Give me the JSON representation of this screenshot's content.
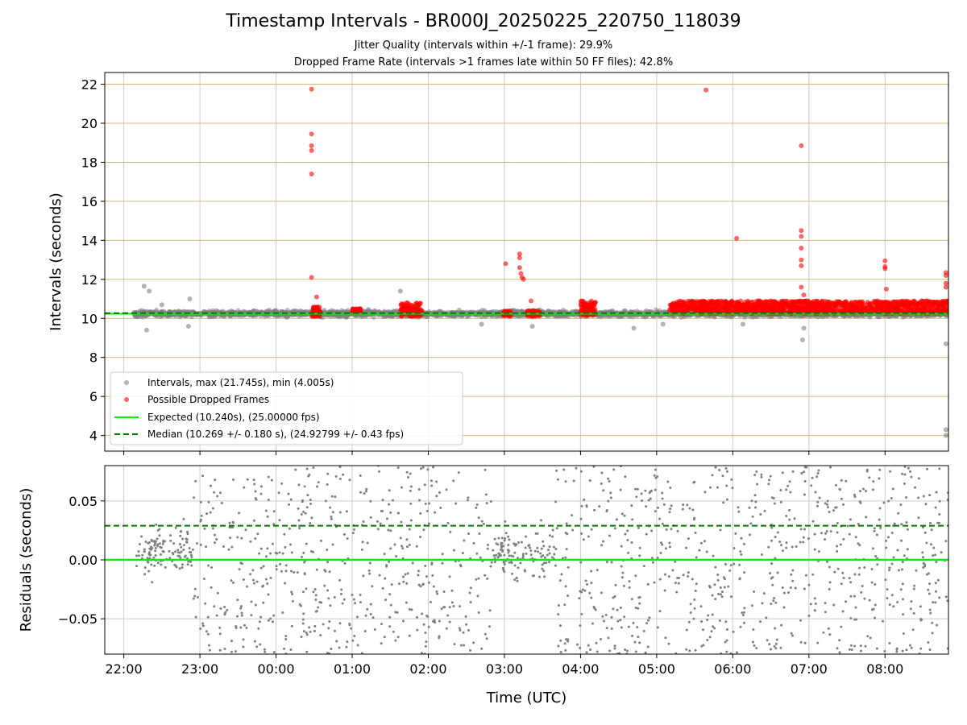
{
  "title": "Timestamp Intervals - BR000J_20250225_220750_118039",
  "subtitle_lines": [
    "Jitter Quality (intervals within +/-1 frame): 29.9%",
    "Dropped Frame Rate (intervals >1 frames late within 50 FF files): 42.8%"
  ],
  "colors": {
    "intervals": "#808080",
    "dropped": "#ff0000",
    "expected": "#00ee00",
    "median": "#007700",
    "major_grid": "#cccccc",
    "hgrid_top": "#d4b87a"
  },
  "chart_data": [
    {
      "type": "scatter",
      "panel": "top",
      "ylabel": "Intervals (seconds)",
      "xlabel": "",
      "xlim": [
        "21:45",
        "08:50"
      ],
      "ylim": [
        3.2,
        22.6
      ],
      "y_ticks": [
        "4",
        "6",
        "8",
        "10",
        "12",
        "14",
        "16",
        "18",
        "20",
        "22"
      ],
      "grid": true,
      "legend_position": "lower-left",
      "legend": [
        "Intervals, max (21.745s), min (4.005s)",
        "Possible Dropped Frames",
        "Expected (10.240s), (25.00000 fps)",
        "Median (10.269 +/- 0.180 s), (24.92799 +/- 0.43 fps)"
      ],
      "expected_value": 10.24,
      "median_value": 10.269,
      "intervals_band": {
        "x_start": "22:08",
        "x_end": "08:50",
        "center": 10.24,
        "spread": 0.25
      },
      "intervals_outliers": [
        {
          "x": "22:16",
          "y": 11.65
        },
        {
          "x": "22:18",
          "y": 9.4
        },
        {
          "x": "22:20",
          "y": 11.4
        },
        {
          "x": "22:30",
          "y": 10.7
        },
        {
          "x": "22:51",
          "y": 9.6
        },
        {
          "x": "22:52",
          "y": 11.0
        },
        {
          "x": "01:38",
          "y": 11.4
        },
        {
          "x": "02:42",
          "y": 9.7
        },
        {
          "x": "03:22",
          "y": 9.6
        },
        {
          "x": "04:42",
          "y": 9.5
        },
        {
          "x": "05:05",
          "y": 9.7
        },
        {
          "x": "06:08",
          "y": 9.7
        },
        {
          "x": "06:55",
          "y": 8.9
        },
        {
          "x": "06:56",
          "y": 9.5
        },
        {
          "x": "08:48",
          "y": 8.7
        },
        {
          "x": "08:48",
          "y": 4.3
        },
        {
          "x": "08:48",
          "y": 4.005
        }
      ],
      "dropped_points": [
        {
          "x": "00:28",
          "y": 21.745
        },
        {
          "x": "00:28",
          "y": 19.45
        },
        {
          "x": "00:28",
          "y": 18.85
        },
        {
          "x": "00:28",
          "y": 18.6
        },
        {
          "x": "00:28",
          "y": 17.4
        },
        {
          "x": "00:28",
          "y": 12.1
        },
        {
          "x": "00:32",
          "y": 11.1
        },
        {
          "x": "03:01",
          "y": 12.8
        },
        {
          "x": "03:12",
          "y": 13.3
        },
        {
          "x": "03:12",
          "y": 13.1
        },
        {
          "x": "03:12",
          "y": 12.6
        },
        {
          "x": "03:13",
          "y": 12.3
        },
        {
          "x": "03:14",
          "y": 12.1
        },
        {
          "x": "03:15",
          "y": 12.0
        },
        {
          "x": "03:21",
          "y": 10.9
        },
        {
          "x": "05:39",
          "y": 21.7
        },
        {
          "x": "06:03",
          "y": 14.1
        },
        {
          "x": "06:54",
          "y": 18.85
        },
        {
          "x": "06:54",
          "y": 14.5
        },
        {
          "x": "06:54",
          "y": 14.2
        },
        {
          "x": "06:54",
          "y": 13.6
        },
        {
          "x": "06:54",
          "y": 13.0
        },
        {
          "x": "06:54",
          "y": 12.7
        },
        {
          "x": "06:54",
          "y": 11.6
        },
        {
          "x": "06:56",
          "y": 11.2
        },
        {
          "x": "08:00",
          "y": 12.95
        },
        {
          "x": "08:00",
          "y": 12.65
        },
        {
          "x": "08:00",
          "y": 12.55
        },
        {
          "x": "08:01",
          "y": 11.5
        },
        {
          "x": "08:48",
          "y": 12.35
        },
        {
          "x": "08:48",
          "y": 12.2
        },
        {
          "x": "08:48",
          "y": 11.8
        },
        {
          "x": "08:48",
          "y": 11.6
        }
      ],
      "dropped_clusters": [
        {
          "x_start": "00:28",
          "x_end": "00:35",
          "y_low": 10.1,
          "y_high": 10.6
        },
        {
          "x_start": "01:00",
          "x_end": "01:07",
          "y_low": 10.3,
          "y_high": 10.5
        },
        {
          "x_start": "01:38",
          "x_end": "01:55",
          "y_low": 10.1,
          "y_high": 10.8
        },
        {
          "x_start": "02:59",
          "x_end": "03:05",
          "y_low": 10.1,
          "y_high": 10.4
        },
        {
          "x_start": "03:18",
          "x_end": "03:28",
          "y_low": 10.1,
          "y_high": 10.4
        },
        {
          "x_start": "04:00",
          "x_end": "04:12",
          "y_low": 10.1,
          "y_high": 10.9
        },
        {
          "x_start": "05:10",
          "x_end": "08:50",
          "y_low": 10.25,
          "y_high": 10.9
        }
      ]
    },
    {
      "type": "scatter",
      "panel": "bottom",
      "ylabel": "Residuals (seconds)",
      "xlabel": "Time (UTC)",
      "xlim": [
        "21:45",
        "08:50"
      ],
      "ylim": [
        -0.08,
        0.08
      ],
      "y_ticks": [
        "0.05",
        "0.00",
        "−0.05"
      ],
      "x_ticks": [
        "22:00",
        "23:00",
        "00:00",
        "01:00",
        "02:00",
        "03:00",
        "04:00",
        "05:00",
        "06:00",
        "07:00",
        "08:00"
      ],
      "grid": true,
      "expected_value": 0.0,
      "median_value": 0.029,
      "residual_spread": 0.08
    }
  ]
}
